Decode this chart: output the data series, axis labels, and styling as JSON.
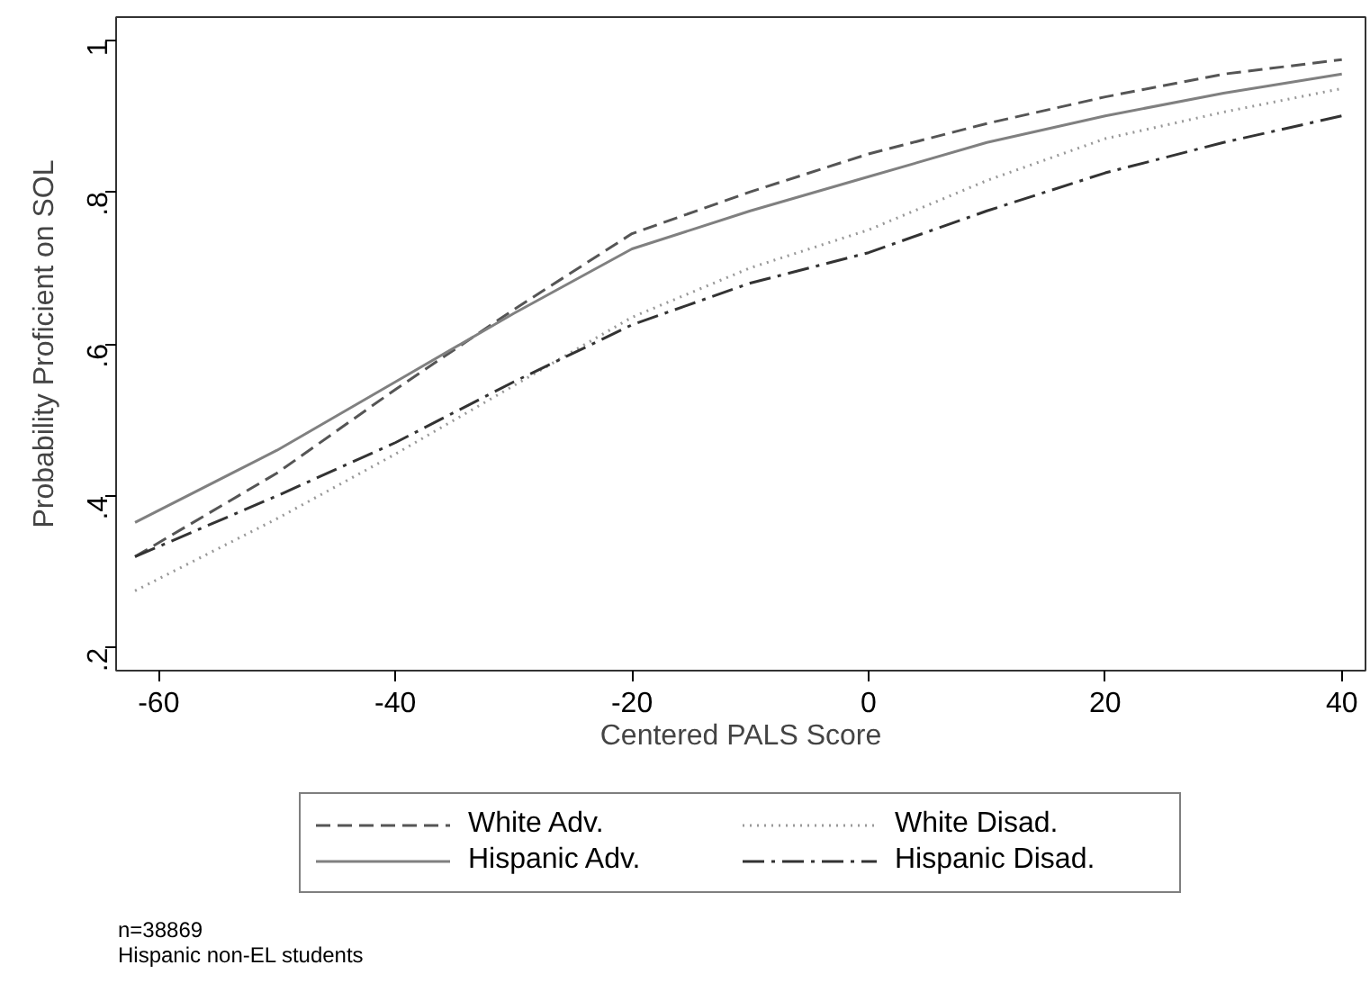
{
  "chart_data": {
    "type": "line",
    "xlabel": "Centered PALS Score",
    "ylabel": "Probability Proficient on SOL",
    "x": [
      -62,
      -50,
      -40,
      -30,
      -20,
      -10,
      0,
      10,
      20,
      30,
      40
    ],
    "series": [
      {
        "name": "White Adv.",
        "color": "#555555",
        "line_style": "dashed",
        "values": [
          0.32,
          0.43,
          0.54,
          0.645,
          0.745,
          0.8,
          0.85,
          0.89,
          0.925,
          0.955,
          0.974
        ]
      },
      {
        "name": "White Disad.",
        "color": "#999999",
        "line_style": "dotted",
        "values": [
          0.275,
          0.37,
          0.455,
          0.545,
          0.635,
          0.7,
          0.75,
          0.815,
          0.87,
          0.905,
          0.936
        ]
      },
      {
        "name": "Hispanic Adv.",
        "color": "#808080",
        "line_style": "solid",
        "values": [
          0.365,
          0.46,
          0.55,
          0.64,
          0.725,
          0.775,
          0.82,
          0.865,
          0.9,
          0.93,
          0.955
        ]
      },
      {
        "name": "Hispanic Disad.",
        "color": "#333333",
        "line_style": "dashdot",
        "values": [
          0.32,
          0.4,
          0.47,
          0.55,
          0.625,
          0.68,
          0.72,
          0.775,
          0.825,
          0.865,
          0.9
        ]
      }
    ],
    "xlim": [
      -63.6,
      42
    ],
    "ylim": [
      0.17,
      1.03
    ],
    "xticks": [
      -60,
      -40,
      -20,
      0,
      20,
      40
    ],
    "yticks": [
      {
        "value": 0.2,
        "label": ".2"
      },
      {
        "value": 0.4,
        "label": ".4"
      },
      {
        "value": 0.6,
        "label": ".6"
      },
      {
        "value": 0.8,
        "label": ".8"
      },
      {
        "value": 1,
        "label": "1"
      }
    ],
    "grid": false,
    "legend": "bottom",
    "marker": "none",
    "annotations": [
      "n=38869",
      "Hispanic non-EL students"
    ]
  }
}
